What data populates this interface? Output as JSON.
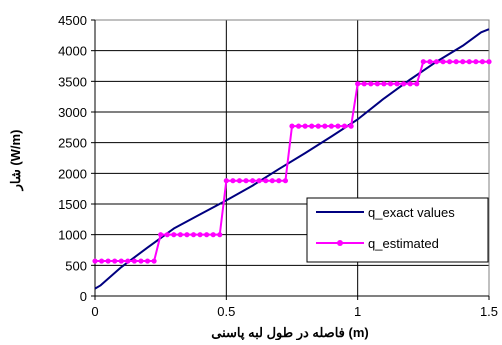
{
  "chart_data": {
    "type": "line",
    "title": "",
    "xlabel": "فاصله در طول لبه پاسنی (m)",
    "ylabel": "شار (W/m)",
    "xlim": [
      0,
      1.5
    ],
    "ylim": [
      0,
      4500
    ],
    "xticks": [
      0,
      0.5,
      1,
      1.5
    ],
    "xtick_labels": [
      "0",
      "0.5",
      "1",
      "1.5"
    ],
    "yticks": [
      0,
      500,
      1000,
      1500,
      2000,
      2500,
      3000,
      3500,
      4000,
      4500
    ],
    "ytick_labels": [
      "0",
      "500",
      "1000",
      "1500",
      "2000",
      "2500",
      "3000",
      "3500",
      "4000",
      "4500"
    ],
    "grid": true,
    "legend_position": "right-middle",
    "series": [
      {
        "name": "q_exact values",
        "color": "#000080",
        "marker": "none",
        "x": [
          0,
          0.02,
          0.1,
          0.2,
          0.3,
          0.4,
          0.5,
          0.6,
          0.7,
          0.8,
          0.9,
          1.0,
          1.1,
          1.2,
          1.3,
          1.4,
          1.47,
          1.5
        ],
        "y": [
          120,
          170,
          470,
          790,
          1100,
          1330,
          1560,
          1800,
          2070,
          2330,
          2600,
          2880,
          3220,
          3530,
          3820,
          4080,
          4300,
          4350
        ]
      },
      {
        "name": "q_estimated",
        "color": "#ff00ff",
        "marker": "circle",
        "x": [
          0,
          0.025,
          0.05,
          0.075,
          0.1,
          0.125,
          0.15,
          0.175,
          0.2,
          0.225,
          0.25,
          0.275,
          0.3,
          0.325,
          0.35,
          0.375,
          0.4,
          0.425,
          0.45,
          0.475,
          0.5,
          0.525,
          0.55,
          0.575,
          0.6,
          0.625,
          0.65,
          0.675,
          0.7,
          0.725,
          0.75,
          0.775,
          0.8,
          0.825,
          0.85,
          0.875,
          0.9,
          0.925,
          0.95,
          0.975,
          1.0,
          1.025,
          1.05,
          1.075,
          1.1,
          1.125,
          1.15,
          1.175,
          1.2,
          1.225,
          1.25,
          1.275,
          1.3,
          1.325,
          1.35,
          1.375,
          1.4,
          1.425,
          1.45,
          1.475,
          1.5
        ],
        "y": [
          570,
          570,
          570,
          570,
          570,
          570,
          570,
          570,
          570,
          570,
          1000,
          1000,
          1000,
          1000,
          1000,
          1000,
          1000,
          1000,
          1000,
          1000,
          1880,
          1880,
          1880,
          1880,
          1880,
          1880,
          1880,
          1880,
          1880,
          1880,
          2770,
          2770,
          2770,
          2770,
          2770,
          2770,
          2770,
          2770,
          2770,
          2770,
          3460,
          3460,
          3460,
          3460,
          3460,
          3460,
          3460,
          3460,
          3460,
          3460,
          3820,
          3820,
          3820,
          3820,
          3820,
          3820,
          3820,
          3820,
          3820,
          3820,
          3820
        ]
      }
    ]
  }
}
